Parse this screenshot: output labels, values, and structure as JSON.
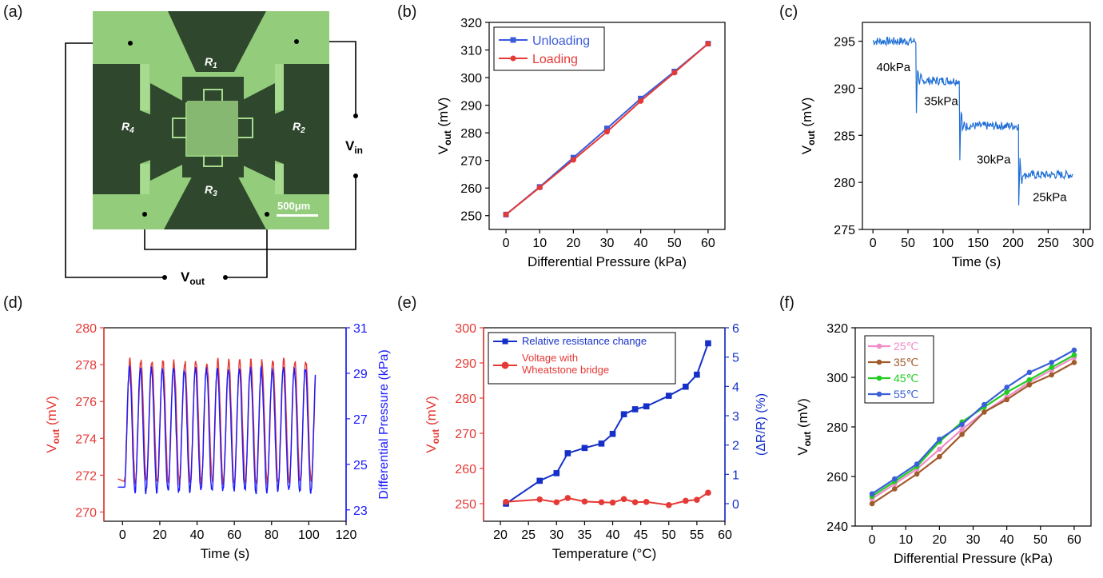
{
  "panel_labels": [
    "(a)",
    "(b)",
    "(c)",
    "(d)",
    "(e)",
    "(f)"
  ],
  "panel_a": {
    "resistors": [
      "R",
      "R",
      "R",
      "R"
    ],
    "resistor_subs": [
      "1",
      "2",
      "3",
      "4"
    ],
    "vin": "V",
    "vin_sub": "in",
    "vout": "V",
    "vout_sub": "out",
    "scale_bar": "500μm",
    "colors": {
      "substrate": "#8fca78",
      "metal": "#2f4a2e",
      "trace": "#9fd687"
    }
  },
  "chart_data": [
    {
      "id": "b",
      "type": "line",
      "title": "",
      "xlabel": "Differential Pressure (kPa)",
      "ylabel": "V",
      "ylabel_sub": "out",
      "ylabel_unit": " (mV)",
      "xlim": [
        -5,
        65
      ],
      "ylim": [
        245,
        320
      ],
      "xticks": [
        0,
        10,
        20,
        30,
        40,
        50,
        60
      ],
      "yticks": [
        250,
        260,
        270,
        280,
        290,
        300,
        310,
        320
      ],
      "legend_position": "top-left",
      "x": [
        0,
        10,
        20,
        30,
        40,
        50,
        60
      ],
      "series": [
        {
          "name": "Unloading",
          "color": "#3b5bdb",
          "marker": "square",
          "values": [
            250.4,
            260.4,
            271.0,
            281.6,
            292.4,
            302.2,
            312.3
          ]
        },
        {
          "name": "Loading",
          "color": "#e53935",
          "marker": "circle",
          "values": [
            250.4,
            260.2,
            270.2,
            280.4,
            291.5,
            301.8,
            312.3
          ]
        }
      ]
    },
    {
      "id": "c",
      "type": "line",
      "title": "",
      "xlabel": "Time (s)",
      "ylabel": "V",
      "ylabel_sub": "out",
      "ylabel_unit": " (mV)",
      "xlim": [
        -15,
        310
      ],
      "ylim": [
        275,
        297
      ],
      "xticks": [
        0,
        50,
        100,
        150,
        200,
        250,
        300
      ],
      "yticks": [
        275,
        280,
        285,
        290,
        295
      ],
      "series": [
        {
          "name": "",
          "color": "#1f6fd6",
          "segments": [
            [
              0,
              62,
              295.0
            ],
            [
              62,
              124,
              290.8
            ],
            [
              124,
              208,
              286.0
            ],
            [
              208,
              286,
              280.8
            ]
          ]
        }
      ],
      "annotations": [
        {
          "text": "40kPa",
          "x": 5,
          "y": 291.8
        },
        {
          "text": "35kPa",
          "x": 73,
          "y": 288.2
        },
        {
          "text": "30kPa",
          "x": 148,
          "y": 282.0
        },
        {
          "text": "25kPa",
          "x": 228,
          "y": 278.0
        }
      ]
    },
    {
      "id": "d",
      "type": "line",
      "title": "",
      "xlabel": "Time (s)",
      "ylabel": "V",
      "ylabel_sub": "out",
      "ylabel_unit": " (mV)",
      "ylabel_right": "Differential Pressure (kPa)",
      "xlim": [
        -10,
        120
      ],
      "ylim": [
        269.5,
        280
      ],
      "ylim_right": [
        22.5,
        31
      ],
      "xticks": [
        0,
        20,
        40,
        60,
        80,
        100,
        120
      ],
      "yticks": [
        270,
        272,
        274,
        276,
        278,
        280
      ],
      "yticks_right": [
        23,
        25,
        27,
        29,
        31
      ],
      "series": [
        {
          "name": "",
          "axis": "left",
          "color": "#e53935",
          "low": 271.6,
          "high": 278.2
        },
        {
          "name": "",
          "axis": "right",
          "color": "#1a1aff",
          "low": 23.8,
          "high": 29.2
        }
      ],
      "period_s": 5.9,
      "start_s": 1.0,
      "end_s": 103.5
    },
    {
      "id": "e",
      "type": "line",
      "title": "",
      "xlabel": "Temperature (°C)",
      "ylabel": "V",
      "ylabel_sub": "out",
      "ylabel_unit": " (mV)",
      "ylabel_right": "(ΔR/R) (%)",
      "xlim": [
        17,
        60
      ],
      "ylim": [
        245,
        300
      ],
      "ylim_right": [
        -0.6,
        6
      ],
      "xticks": [
        20,
        25,
        30,
        35,
        40,
        45,
        50,
        55,
        60
      ],
      "yticks": [
        250,
        260,
        270,
        280,
        290,
        300
      ],
      "yticks_right": [
        0,
        1,
        2,
        3,
        4,
        5,
        6
      ],
      "legend_position": "top-left",
      "x": [
        21,
        27,
        30,
        32,
        35,
        38,
        40,
        42,
        44,
        46,
        50,
        53,
        55,
        57
      ],
      "series": [
        {
          "name": "Relative resistance change",
          "axis": "right",
          "color": "#1530c8",
          "marker": "square",
          "values": [
            0.0,
            0.78,
            1.04,
            1.72,
            1.9,
            2.05,
            2.38,
            3.05,
            3.22,
            3.32,
            3.68,
            3.99,
            4.4,
            5.47
          ]
        },
        {
          "name": "Voltage with\nWheatstone bridge",
          "axis": "left",
          "color": "#e53935",
          "marker": "circle",
          "values": [
            250.5,
            251.2,
            250.4,
            251.6,
            250.6,
            250.4,
            250.3,
            251.3,
            250.4,
            250.5,
            249.6,
            250.8,
            251.1,
            253.1
          ]
        }
      ]
    },
    {
      "id": "f",
      "type": "line",
      "title": "",
      "xlabel": "Differential Pressure (kPa)",
      "ylabel": "V",
      "ylabel_sub": "out",
      "ylabel_unit": " (mV)",
      "xlim": [
        -5,
        65
      ],
      "ylim": [
        240,
        320
      ],
      "xticks": [
        0,
        10,
        20,
        30,
        40,
        50,
        60
      ],
      "yticks": [
        240,
        260,
        280,
        300,
        320
      ],
      "legend_position": "top-left",
      "x": [
        0,
        6.7,
        13.3,
        20,
        26.7,
        33.3,
        40,
        46.7,
        53.3,
        60
      ],
      "series": [
        {
          "name": "25℃",
          "color": "#f08cc8",
          "values": [
            251,
            257,
            263,
            271,
            279,
            286,
            292,
            298,
            303,
            308
          ]
        },
        {
          "name": "35℃",
          "color": "#a05a2c",
          "values": [
            249,
            255,
            261,
            268,
            277,
            286,
            291,
            297,
            301,
            306
          ]
        },
        {
          "name": "45℃",
          "color": "#22cc22",
          "values": [
            252,
            258,
            264,
            274,
            282,
            288,
            294,
            299,
            304,
            309
          ]
        },
        {
          "name": "55℃",
          "color": "#3a5fd9",
          "values": [
            253,
            259,
            265,
            275,
            281,
            289,
            296,
            302,
            306,
            311
          ]
        }
      ]
    }
  ]
}
